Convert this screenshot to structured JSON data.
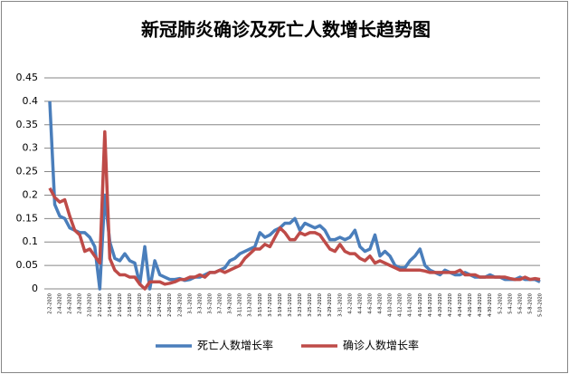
{
  "chart_data": {
    "type": "line",
    "title": "新冠肺炎确诊及死亡人数增长趋势图",
    "categories": [
      "2-2-2020",
      null,
      "2-4-2020",
      null,
      "2-6-2020",
      null,
      "2-8-2020",
      null,
      "2-10-2020",
      null,
      "2-12-2020",
      null,
      "2-14-2020",
      null,
      "2-16-2020",
      null,
      "2-18-2020",
      null,
      "2-20-2020",
      null,
      "2-22-2020",
      null,
      "2-24-2020",
      null,
      "2-26-2020",
      null,
      "2-28-2020",
      null,
      "3-1-2020",
      null,
      "3-3-2020",
      null,
      "3-5-2020",
      null,
      "3-7-2020",
      null,
      "3-9-2020",
      null,
      "3-11-2020",
      null,
      "3-13-2020",
      null,
      "3-15-2020",
      null,
      "3-17-2020",
      null,
      "3-19-2020",
      null,
      "3-21-2020",
      null,
      "3-23-2020",
      null,
      "3-25-2020",
      null,
      "3-27-2020",
      null,
      "3-29-2020",
      null,
      "3-31-2020",
      null,
      "4-2-2020",
      null,
      "4-4-2020",
      null,
      "4-6-2020",
      null,
      "4-8-2020",
      null,
      "4-10-2020",
      null,
      "4-12-2020",
      null,
      "4-14-2020",
      null,
      "4-16-2020",
      null,
      "4-18-2020",
      null,
      "4-20-2020",
      null,
      "4-22-2020",
      null,
      "4-24-2020",
      null,
      "4-26-2020",
      null,
      "4-28-2020",
      null,
      "4-30-2020",
      null,
      "5-2-2020",
      null,
      "5-4-2020",
      null,
      "5-6-2020",
      null,
      "5-8-2020",
      null,
      "5-10-2020"
    ],
    "series": [
      {
        "name": "死亡人数增长率",
        "color": "#4a7ebb",
        "values": [
          0.4,
          0.18,
          0.155,
          0.15,
          0.13,
          0.125,
          0.12,
          0.12,
          0.11,
          0.09,
          0,
          0.2,
          0.1,
          0.065,
          0.06,
          0.075,
          0.06,
          0.055,
          0.01,
          0.09,
          0,
          0.06,
          0.03,
          0.025,
          0.02,
          0.02,
          0.022,
          0.018,
          0.02,
          0.025,
          0.025,
          0.03,
          0.035,
          0.035,
          0.04,
          0.045,
          0.06,
          0.065,
          0.075,
          0.08,
          0.085,
          0.09,
          0.12,
          0.11,
          0.115,
          0.125,
          0.13,
          0.14,
          0.14,
          0.15,
          0.125,
          0.14,
          0.135,
          0.13,
          0.135,
          0.125,
          0.105,
          0.105,
          0.11,
          0.105,
          0.11,
          0.125,
          0.09,
          0.08,
          0.085,
          0.115,
          0.07,
          0.08,
          0.07,
          0.05,
          0.045,
          0.045,
          0.06,
          0.07,
          0.085,
          0.05,
          0.04,
          0.035,
          0.03,
          0.04,
          0.035,
          0.03,
          0.03,
          0.035,
          0.03,
          0.025,
          0.025,
          0.025,
          0.03,
          0.025,
          0.025,
          0.02,
          0.02,
          0.02,
          0.025,
          0.02,
          0.02,
          0.02,
          0.015
        ]
      },
      {
        "name": "确诊人数增长率",
        "color": "#be4b48",
        "values": [
          0.215,
          0.195,
          0.185,
          0.19,
          0.155,
          0.125,
          0.115,
          0.08,
          0.085,
          0.07,
          0.055,
          0.335,
          0.065,
          0.04,
          0.03,
          0.03,
          0.025,
          0.025,
          0.01,
          0,
          0.015,
          0.015,
          0.015,
          0.01,
          0.012,
          0.015,
          0.02,
          0.02,
          0.025,
          0.025,
          0.03,
          0.025,
          0.035,
          0.035,
          0.04,
          0.035,
          0.04,
          0.045,
          0.05,
          0.065,
          0.075,
          0.085,
          0.085,
          0.095,
          0.09,
          0.11,
          0.13,
          0.12,
          0.105,
          0.105,
          0.12,
          0.115,
          0.12,
          0.12,
          0.115,
          0.1,
          0.085,
          0.08,
          0.095,
          0.08,
          0.075,
          0.075,
          0.065,
          0.06,
          0.07,
          0.055,
          0.06,
          0.055,
          0.05,
          0.045,
          0.04,
          0.04,
          0.04,
          0.04,
          0.04,
          0.038,
          0.035,
          0.035,
          0.035,
          0.035,
          0.035,
          0.035,
          0.04,
          0.03,
          0.03,
          0.03,
          0.025,
          0.025,
          0.025,
          0.025,
          0.025,
          0.025,
          0.022,
          0.02,
          0.02,
          0.025,
          0.02,
          0.022,
          0.02
        ]
      }
    ],
    "ylim": [
      0,
      0.45
    ],
    "yticks": [
      0,
      0.05,
      0.1,
      0.15,
      0.2,
      0.25,
      0.3,
      0.35,
      0.4,
      0.45
    ],
    "grid": true
  }
}
